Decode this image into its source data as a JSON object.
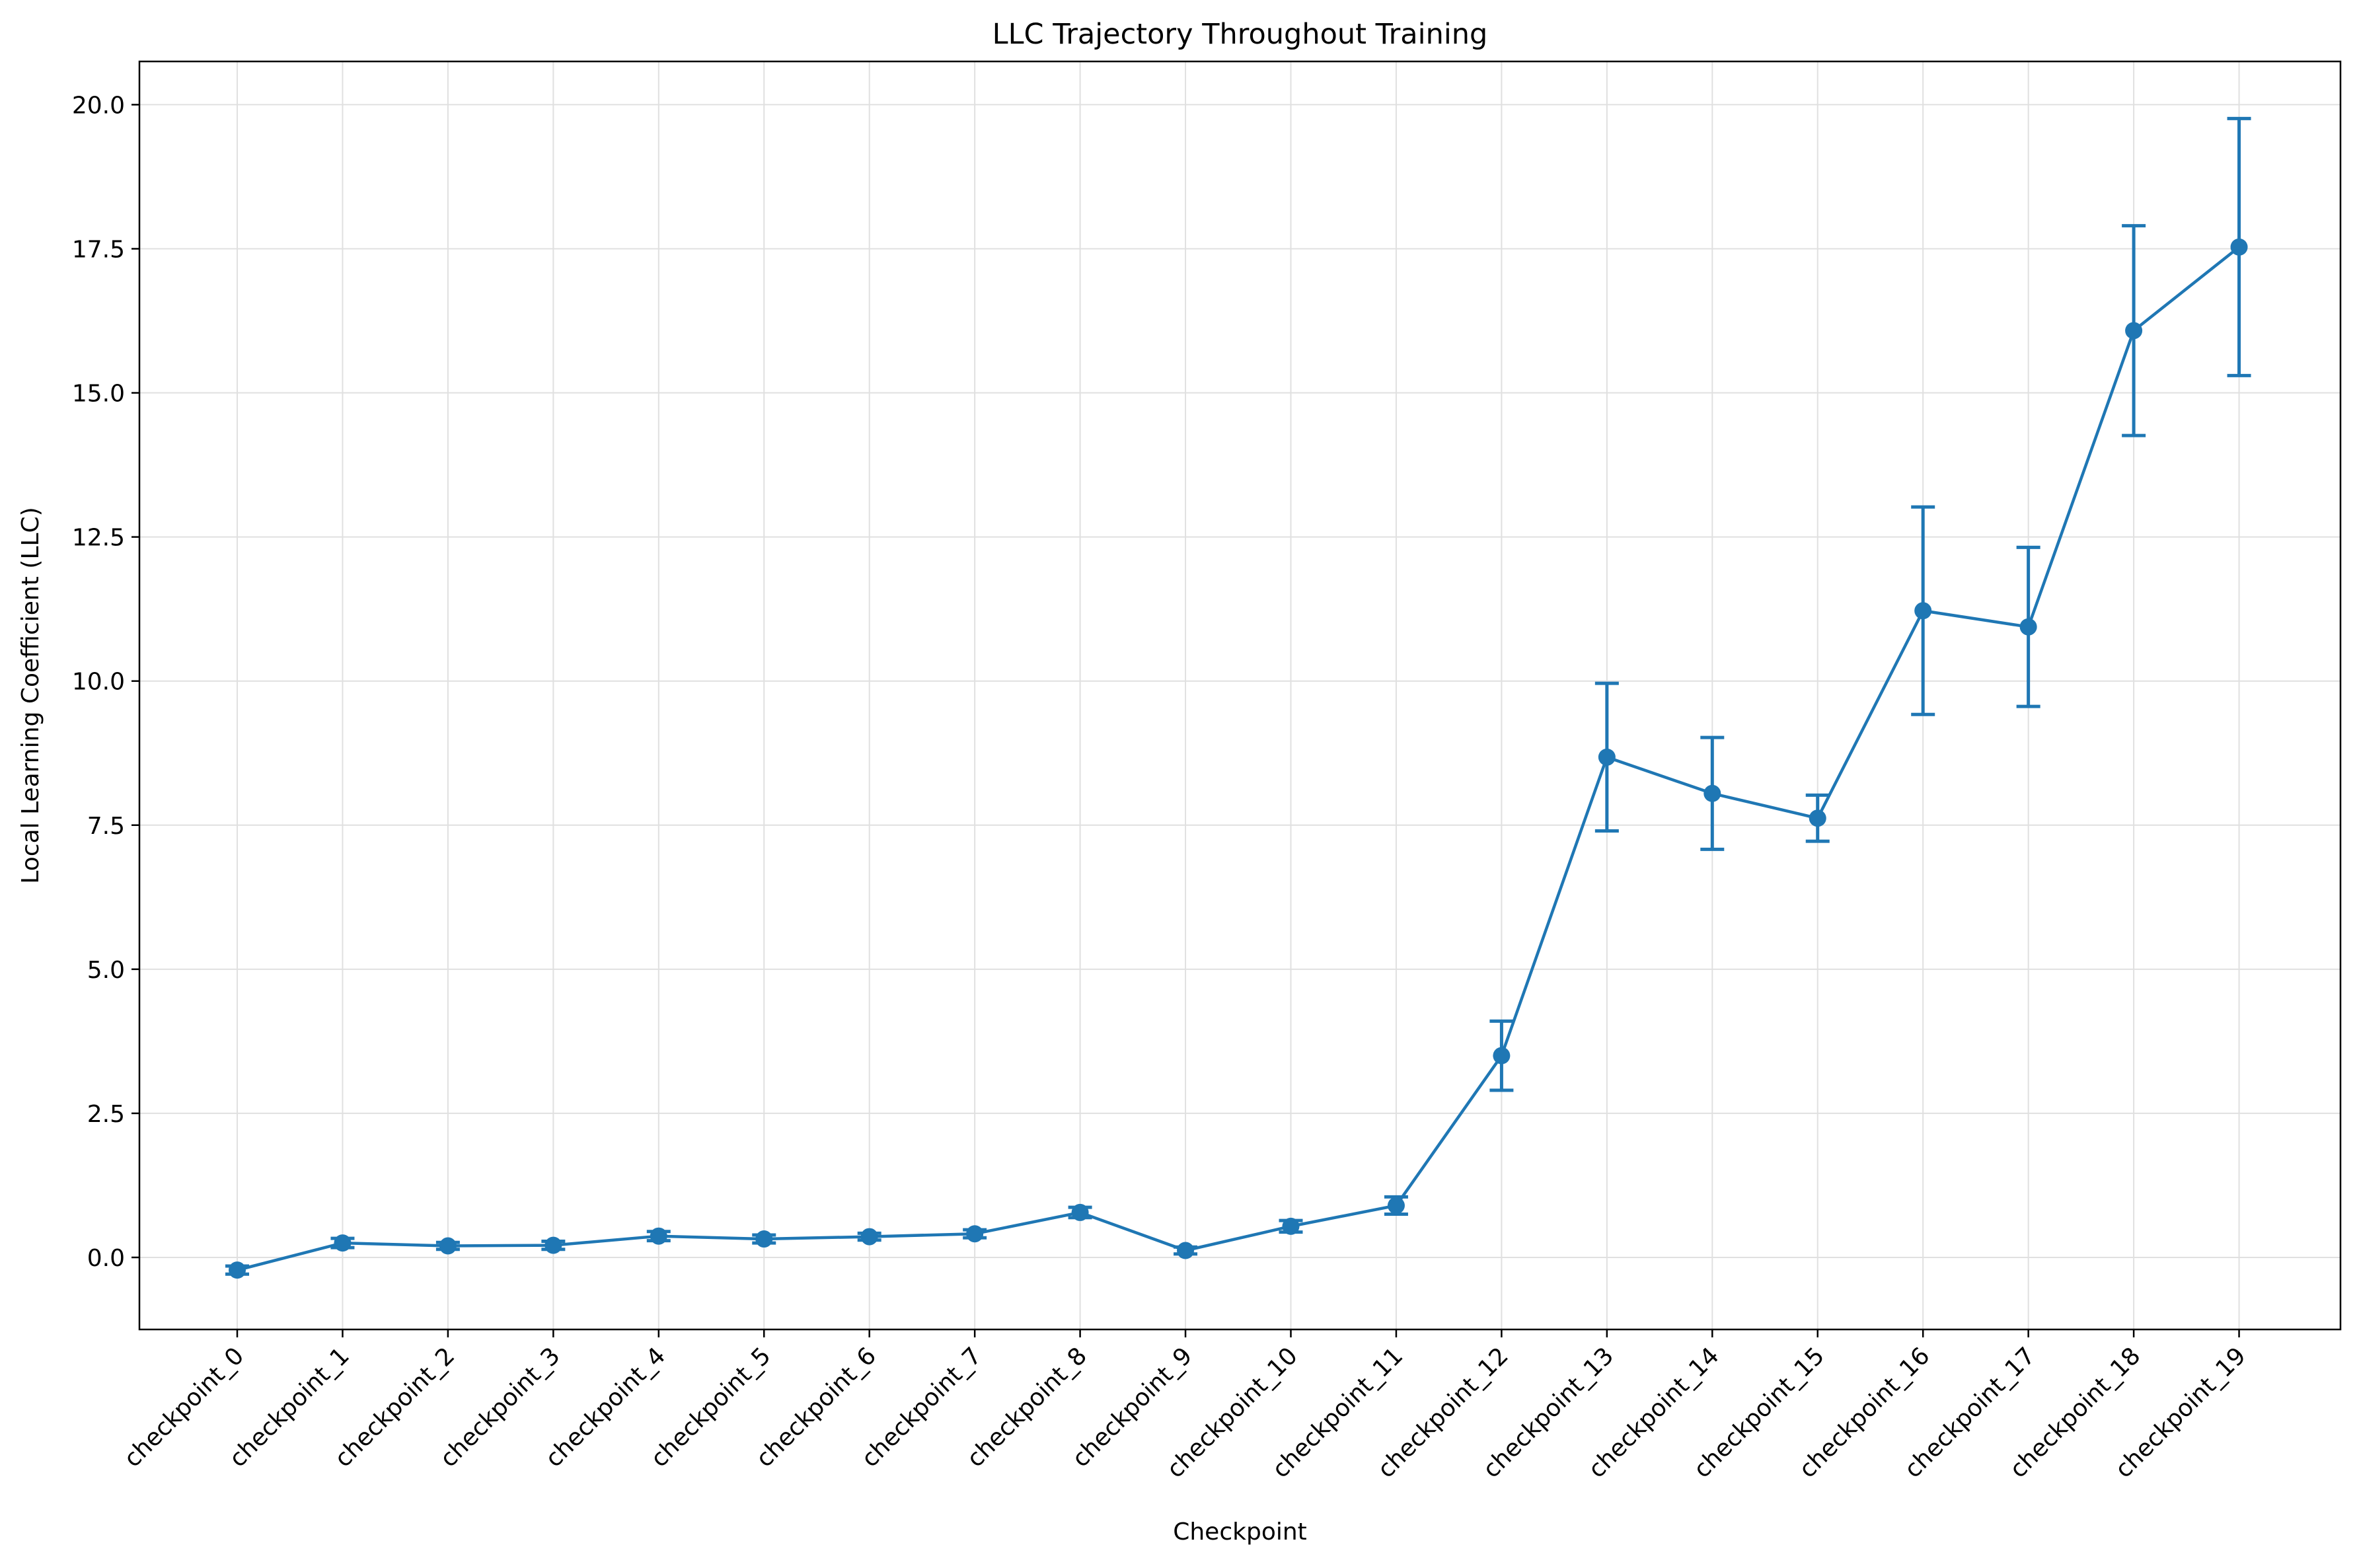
{
  "chart_data": {
    "type": "line",
    "title": "LLC Trajectory Throughout Training",
    "xlabel": "Checkpoint",
    "ylabel": "Local Learning Coefficient (LLC)",
    "categories": [
      "checkpoint_0",
      "checkpoint_1",
      "checkpoint_2",
      "checkpoint_3",
      "checkpoint_4",
      "checkpoint_5",
      "checkpoint_6",
      "checkpoint_7",
      "checkpoint_8",
      "checkpoint_9",
      "checkpoint_10",
      "checkpoint_11",
      "checkpoint_12",
      "checkpoint_13",
      "checkpoint_14",
      "checkpoint_15",
      "checkpoint_16",
      "checkpoint_17",
      "checkpoint_18",
      "checkpoint_19"
    ],
    "series": [
      {
        "values": [
          -0.22,
          0.25,
          0.2,
          0.21,
          0.37,
          0.32,
          0.36,
          0.41,
          0.78,
          0.12,
          0.54,
          0.9,
          3.5,
          8.68,
          8.05,
          7.62,
          11.22,
          10.94,
          16.08,
          17.53
        ],
        "errors": [
          0.07,
          0.08,
          0.06,
          0.07,
          0.08,
          0.07,
          0.06,
          0.07,
          0.09,
          0.06,
          0.1,
          0.15,
          0.6,
          1.28,
          0.97,
          0.4,
          1.8,
          1.38,
          1.82,
          2.23
        ],
        "color": "#1f77b4"
      }
    ],
    "yticks": [
      "0.0",
      "2.5",
      "5.0",
      "7.5",
      "10.0",
      "12.5",
      "15.0",
      "17.5",
      "20.0"
    ],
    "ylim": [
      -1.25,
      20.75
    ],
    "grid": true,
    "legend": "none"
  }
}
